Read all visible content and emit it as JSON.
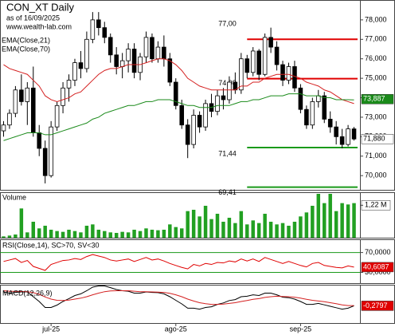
{
  "chart_data": [
    {
      "type": "candlestick",
      "title": "CON_XT Daily",
      "subtitle": "as of 16/09/2025",
      "source": "www.wealth-lab.com",
      "xlim": [
        -0.6,
        60.0
      ],
      "xticks": [
        {
          "value": 8,
          "label": "jul-25"
        },
        {
          "value": 29,
          "label": "ago-25"
        },
        {
          "value": 50,
          "label": "sep-25"
        }
      ],
      "ylim": [
        69.27,
        79.02
      ],
      "yticks": [
        {
          "value": 78,
          "label": "78,000"
        },
        {
          "value": 77,
          "label": "77,000"
        },
        {
          "value": 76,
          "label": "76,000"
        },
        {
          "value": 75,
          "label": "75,000"
        },
        {
          "value": 74,
          "label": "74,000"
        },
        {
          "value": 73,
          "label": "73,000"
        },
        {
          "value": 72,
          "label": "72,000"
        },
        {
          "value": 71,
          "label": "71,000"
        },
        {
          "value": 70,
          "label": "70,000"
        }
      ],
      "up_color": "#ffffff",
      "down_color": "#000000",
      "open": [
        72.3,
        72.6,
        73.2,
        74.4,
        73.8,
        74.5,
        72.2,
        71.4,
        70.0,
        72.5,
        73.6,
        74.5,
        74.9,
        75.8,
        75.5,
        77.0,
        78.0,
        77.6,
        77.1,
        76.2,
        75.6,
        75.9,
        76.5,
        75.3,
        76.1,
        77.1,
        76.0,
        76.6,
        76.0,
        74.8,
        73.6,
        72.6,
        71.6,
        73.1,
        72.5,
        73.7,
        73.3,
        74.1,
        73.9,
        74.8,
        74.4,
        76.0,
        75.3,
        76.4,
        75.2,
        77.1,
        76.6,
        75.7,
        74.9,
        75.6,
        74.5,
        73.4,
        72.6,
        73.8,
        74.1,
        72.9,
        72.5,
        72.0,
        71.6,
        72.4
      ],
      "high": [
        72.8,
        73.4,
        74.6,
        75.2,
        74.8,
        75.6,
        72.6,
        71.8,
        72.8,
        73.8,
        74.8,
        75.2,
        76.0,
        76.4,
        77.4,
        78.4,
        78.4,
        77.9,
        77.3,
        76.6,
        76.3,
        76.8,
        76.8,
        76.3,
        77.4,
        77.3,
        76.9,
        77.2,
        76.3,
        75.0,
        73.9,
        72.9,
        73.4,
        73.3,
        73.9,
        74.2,
        74.4,
        74.5,
        75.1,
        75.3,
        76.3,
        76.2,
        76.6,
        76.5,
        77.3,
        77.6,
        76.9,
        75.9,
        75.8,
        75.9,
        74.7,
        73.6,
        74.0,
        74.4,
        74.3,
        73.3,
        72.8,
        72.4,
        72.6,
        72.5
      ],
      "low": [
        72.0,
        72.4,
        73.0,
        73.6,
        72.6,
        72.0,
        71.0,
        69.6,
        69.9,
        72.3,
        73.2,
        73.8,
        74.6,
        75.0,
        75.3,
        76.8,
        77.2,
        76.8,
        75.8,
        75.2,
        75.0,
        75.3,
        75.0,
        74.9,
        75.8,
        75.8,
        75.8,
        75.6,
        74.6,
        73.4,
        72.4,
        70.9,
        71.4,
        72.2,
        72.3,
        73.0,
        73.1,
        73.4,
        73.7,
        74.2,
        74.2,
        75.0,
        75.1,
        74.9,
        75.1,
        76.3,
        75.4,
        74.6,
        74.7,
        74.3,
        73.2,
        72.4,
        72.4,
        73.5,
        72.7,
        72.2,
        71.6,
        71.4,
        71.5,
        71.8
      ],
      "close": [
        72.6,
        73.2,
        74.4,
        73.8,
        74.5,
        72.2,
        71.4,
        70.0,
        72.5,
        73.6,
        74.5,
        74.9,
        75.8,
        75.5,
        77.0,
        78.0,
        77.6,
        77.1,
        76.2,
        75.6,
        75.9,
        76.5,
        75.3,
        76.1,
        77.1,
        76.0,
        76.6,
        76.0,
        74.8,
        73.6,
        72.6,
        71.6,
        73.1,
        72.5,
        73.7,
        73.3,
        74.1,
        73.9,
        74.8,
        74.4,
        76.0,
        75.3,
        76.4,
        75.2,
        77.1,
        76.6,
        75.7,
        74.9,
        75.6,
        74.5,
        73.4,
        72.6,
        73.8,
        74.1,
        72.9,
        72.5,
        72.0,
        71.6,
        72.4,
        71.88
      ],
      "last_label": "71,880",
      "series": [
        {
          "name": "EMA(Close,21)",
          "color": "#d42020",
          "values": [
            75.7,
            75.5,
            75.4,
            75.3,
            75.2,
            74.9,
            74.6,
            74.1,
            73.9,
            73.8,
            73.9,
            74.0,
            74.2,
            74.3,
            74.6,
            74.9,
            75.2,
            75.4,
            75.5,
            75.5,
            75.6,
            75.7,
            75.7,
            75.7,
            75.8,
            75.9,
            76.0,
            76.0,
            75.9,
            75.7,
            75.4,
            75.0,
            74.8,
            74.6,
            74.5,
            74.4,
            74.4,
            74.4,
            74.4,
            74.4,
            74.6,
            74.6,
            74.8,
            74.8,
            75.0,
            75.1,
            75.2,
            75.2,
            75.2,
            75.1,
            75.0,
            74.8,
            74.7,
            74.6,
            74.4,
            74.3,
            74.1,
            73.9,
            73.8,
            73.7
          ]
        },
        {
          "name": "EMA(Close,70)",
          "color": "#1a8a1a",
          "values": [
            71.8,
            71.9,
            72.0,
            72.1,
            72.2,
            72.2,
            72.2,
            72.1,
            72.1,
            72.2,
            72.3,
            72.4,
            72.5,
            72.6,
            72.7,
            72.9,
            73.0,
            73.2,
            73.3,
            73.4,
            73.5,
            73.6,
            73.6,
            73.7,
            73.8,
            73.8,
            73.9,
            73.9,
            73.9,
            73.8,
            73.7,
            73.6,
            73.6,
            73.5,
            73.5,
            73.5,
            73.6,
            73.6,
            73.6,
            73.7,
            73.8,
            73.8,
            73.9,
            73.9,
            74.0,
            74.1,
            74.1,
            74.1,
            74.2,
            74.2,
            74.2,
            74.1,
            74.1,
            74.1,
            74.0,
            74.0,
            73.9,
            73.9,
            73.9,
            73.887
          ],
          "last_label": "73,887"
        }
      ],
      "levels": [
        {
          "value": 77.0,
          "label": "77,00",
          "color": "#e00000",
          "from": 41
        },
        {
          "value": 74.98,
          "label": "74,98",
          "color": "#e00000",
          "from": 41
        },
        {
          "value": 71.44,
          "label": "71,44",
          "color": "#1a9a1a",
          "from": 41
        },
        {
          "value": 69.41,
          "label": "69,41",
          "color": "#1a9a1a",
          "from": 41
        }
      ]
    },
    {
      "type": "bar",
      "title": "Volume",
      "color": "#22a022",
      "ylim": [
        0,
        1.71
      ],
      "yticks": [
        {
          "value": 1.22,
          "label": "1,22 M"
        }
      ],
      "values": [
        0.05,
        0.08,
        0.12,
        1.1,
        0.2,
        0.6,
        0.35,
        0.45,
        0.3,
        0.25,
        0.22,
        0.3,
        0.25,
        0.2,
        0.45,
        0.5,
        0.3,
        0.25,
        0.2,
        0.18,
        0.22,
        0.2,
        0.3,
        0.25,
        0.35,
        0.3,
        0.28,
        0.3,
        0.5,
        0.4,
        0.35,
        1.0,
        1.05,
        0.8,
        1.2,
        0.7,
        0.9,
        0.6,
        0.75,
        0.55,
        1.0,
        0.5,
        0.65,
        0.55,
        0.9,
        0.6,
        0.5,
        0.55,
        0.45,
        0.6,
        0.8,
        0.95,
        1.2,
        1.65,
        1.3,
        1.65,
        1.0,
        1.3,
        1.25,
        1.3
      ]
    },
    {
      "type": "line",
      "title": "RSI(Close,14), SC>70, SV<30",
      "ylim": [
        8.3,
        96.7
      ],
      "yticks": [
        {
          "value": 70,
          "label": "70,0000"
        },
        {
          "value": 30,
          "label": "30,0000"
        }
      ],
      "band_color": "#1a9a1a",
      "series": [
        {
          "name": "RSI",
          "color": "#e00000",
          "values": [
            52,
            55,
            58,
            50,
            54,
            42,
            38,
            34,
            46,
            50,
            54,
            55,
            58,
            56,
            62,
            66,
            63,
            60,
            55,
            53,
            55,
            57,
            52,
            56,
            60,
            55,
            57,
            53,
            48,
            44,
            40,
            37,
            46,
            43,
            48,
            46,
            50,
            49,
            53,
            51,
            57,
            53,
            57,
            52,
            60,
            56,
            52,
            48,
            52,
            48,
            44,
            41,
            48,
            50,
            44,
            42,
            40,
            39,
            43,
            40.6087
          ],
          "last_label": "40,6087"
        }
      ]
    },
    {
      "type": "line",
      "title": "MACD(12,26,9)",
      "ylim": [
        -1.0,
        0.6
      ],
      "series": [
        {
          "name": "MACD",
          "color": "#000000",
          "values": [
            0.3,
            0.25,
            0.28,
            0.3,
            0.3,
            0.1,
            -0.1,
            -0.35,
            -0.35,
            -0.25,
            -0.1,
            0.02,
            0.15,
            0.22,
            0.35,
            0.5,
            0.55,
            0.55,
            0.48,
            0.4,
            0.35,
            0.33,
            0.25,
            0.25,
            0.3,
            0.28,
            0.27,
            0.22,
            0.1,
            -0.05,
            -0.2,
            -0.38,
            -0.38,
            -0.42,
            -0.35,
            -0.32,
            -0.22,
            -0.16,
            -0.06,
            -0.02,
            0.1,
            0.12,
            0.18,
            0.15,
            0.25,
            0.25,
            0.18,
            0.08,
            0.06,
            0.0,
            -0.1,
            -0.22,
            -0.22,
            -0.18,
            -0.24,
            -0.3,
            -0.36,
            -0.42,
            -0.38,
            -0.2797
          ],
          "last_label": "-0,2797"
        },
        {
          "name": "Signal",
          "color": "#d42020",
          "values": [
            0.35,
            0.33,
            0.32,
            0.32,
            0.31,
            0.27,
            0.2,
            0.09,
            0.0,
            -0.05,
            -0.06,
            -0.04,
            0.0,
            0.04,
            0.1,
            0.18,
            0.25,
            0.31,
            0.34,
            0.35,
            0.35,
            0.35,
            0.33,
            0.31,
            0.31,
            0.3,
            0.29,
            0.28,
            0.24,
            0.18,
            0.1,
            0.0,
            -0.08,
            -0.15,
            -0.19,
            -0.22,
            -0.22,
            -0.21,
            -0.18,
            -0.15,
            -0.1,
            -0.06,
            -0.01,
            0.02,
            0.07,
            0.1,
            0.12,
            0.11,
            0.1,
            0.08,
            0.04,
            -0.01,
            -0.05,
            -0.08,
            -0.11,
            -0.15,
            -0.19,
            -0.24,
            -0.27,
            -0.27
          ]
        }
      ]
    }
  ]
}
